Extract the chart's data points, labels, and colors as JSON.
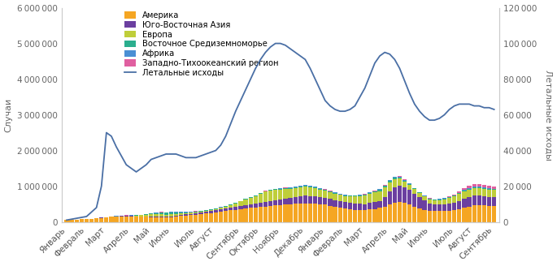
{
  "x_labels": [
    "Январь",
    "Февраль",
    "Март",
    "Апрель",
    "Май",
    "Июнь",
    "Июль",
    "Август",
    "Сентябрь",
    "Октябрь",
    "Ноябрь",
    "Декабрь",
    "Январь",
    "Февраль",
    "Март",
    "Апрель",
    "Май",
    "Июнь",
    "Июль",
    "Август",
    "Сентябрь"
  ],
  "x_tick_positions": [
    0,
    4,
    8,
    13,
    17,
    21,
    26,
    30,
    35,
    39,
    43,
    48,
    52,
    56,
    60,
    65,
    69,
    73,
    78,
    82,
    86
  ],
  "n_bars": 87,
  "colors": {
    "america": "#F5A623",
    "sea": "#6B3FA0",
    "europe": "#BFCE3A",
    "emr": "#2BAE8E",
    "africa": "#4A8FD4",
    "wpro": "#E05FA0",
    "deaths": "#4A6FA5"
  },
  "legend_labels": [
    "Америка",
    "Юго-Восточная Азия",
    "Европа",
    "Восточное Средиземноморье",
    "Африка",
    "Западно-Тихоокеанский регион",
    "Летальные исходы"
  ],
  "ylabel_left": "Случаи",
  "ylabel_right": "Летальные исходы",
  "ylim_left": [
    0,
    6000000
  ],
  "ylim_right": [
    0,
    120000
  ],
  "background_color": "#ffffff"
}
